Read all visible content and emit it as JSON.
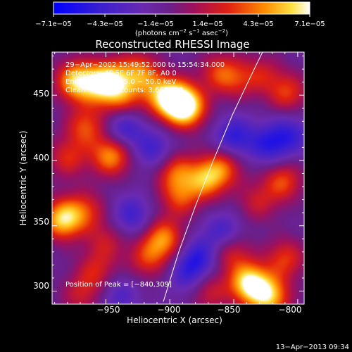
{
  "chart_data": {
    "type": "heatmap",
    "title": "Reconstructed RHESSI Image",
    "xlabel": "Heliocentric X (arcsec)",
    "ylabel": "Heliocentric Y (arcsec)",
    "xlim": [
      -992,
      -795
    ],
    "ylim": [
      290,
      483
    ],
    "x_ticks": [
      -950,
      -900,
      -850,
      -800
    ],
    "x_tick_labels": [
      "−950",
      "−900",
      "−850",
      "−800"
    ],
    "y_ticks": [
      300,
      350,
      400,
      450
    ],
    "y_tick_labels": [
      "300",
      "350",
      "400",
      "450"
    ],
    "colorbar": {
      "range": [
        -7.1e-05,
        7.1e-05
      ],
      "tick_labels": [
        "−7.1e−05",
        "−4.3e−05",
        "−1.4e−05",
        "1.4e−05",
        "4.3e−05",
        "7.1e−05"
      ],
      "units_main": "(photons cm",
      "units_exp1": "−2",
      "units_mid": " s",
      "units_exp2": "−1",
      "units_after": " asec",
      "units_exp3": "−2",
      "units_close": ")"
    },
    "annotations": {
      "time_range": "29−Apr−2002 15:49:52.000 to 15:54:34.000",
      "detectors": "Detectors: 4F 5F 6F 7F 8F, A0 0",
      "energy": "Energy Range: 25.0 − 50.0 keV",
      "method": "Clean",
      "counts": "Total counts: 3.66E+03",
      "peak": "Position of Peak = [−840,309]"
    },
    "limb_curve": [
      [
        -905,
        292
      ],
      [
        -893,
        330
      ],
      [
        -880,
        365
      ],
      [
        -866,
        400
      ],
      [
        -851,
        435
      ],
      [
        -834,
        470
      ],
      [
        -826,
        486
      ]
    ],
    "blobs": [
      {
        "x": -974,
        "y": 461,
        "v": 0.85
      },
      {
        "x": -956,
        "y": 458,
        "v": 0.55
      },
      {
        "x": -946,
        "y": 462,
        "v": 0.65
      },
      {
        "x": -938,
        "y": 448,
        "v": 0.45
      },
      {
        "x": -924,
        "y": 468,
        "v": 0.6
      },
      {
        "x": -910,
        "y": 452,
        "v": 0.45
      },
      {
        "x": -896,
        "y": 446,
        "v": 1.0
      },
      {
        "x": -886,
        "y": 440,
        "v": 0.75
      },
      {
        "x": -862,
        "y": 468,
        "v": 0.45
      },
      {
        "x": -848,
        "y": 462,
        "v": 0.35
      },
      {
        "x": -828,
        "y": 466,
        "v": 0.35
      },
      {
        "x": -808,
        "y": 452,
        "v": 0.5
      },
      {
        "x": -966,
        "y": 426,
        "v": 0.55
      },
      {
        "x": -946,
        "y": 404,
        "v": 0.75
      },
      {
        "x": -980,
        "y": 402,
        "v": 0.45
      },
      {
        "x": -936,
        "y": 424,
        "v": -0.45
      },
      {
        "x": -912,
        "y": 408,
        "v": -0.4
      },
      {
        "x": -896,
        "y": 392,
        "v": 0.55
      },
      {
        "x": -872,
        "y": 386,
        "v": 0.7
      },
      {
        "x": -858,
        "y": 395,
        "v": 0.5
      },
      {
        "x": -850,
        "y": 418,
        "v": -0.5
      },
      {
        "x": -823,
        "y": 412,
        "v": -0.45
      },
      {
        "x": -806,
        "y": 420,
        "v": -0.4
      },
      {
        "x": -812,
        "y": 384,
        "v": 0.55
      },
      {
        "x": -832,
        "y": 368,
        "v": 0.35
      },
      {
        "x": -984,
        "y": 355,
        "v": 0.9
      },
      {
        "x": -966,
        "y": 362,
        "v": 0.45
      },
      {
        "x": -950,
        "y": 338,
        "v": 0.35
      },
      {
        "x": -930,
        "y": 358,
        "v": -0.4
      },
      {
        "x": -958,
        "y": 315,
        "v": 0.4
      },
      {
        "x": -918,
        "y": 325,
        "v": 0.45
      },
      {
        "x": -905,
        "y": 340,
        "v": 0.7
      },
      {
        "x": -892,
        "y": 372,
        "v": 0.5
      },
      {
        "x": -878,
        "y": 326,
        "v": -0.45
      },
      {
        "x": -858,
        "y": 345,
        "v": -0.4
      },
      {
        "x": -852,
        "y": 330,
        "v": 0.45
      },
      {
        "x": -838,
        "y": 306,
        "v": 1.0
      },
      {
        "x": -822,
        "y": 296,
        "v": 0.8
      },
      {
        "x": -810,
        "y": 325,
        "v": 0.5
      },
      {
        "x": -870,
        "y": 300,
        "v": 0.4
      },
      {
        "x": -886,
        "y": 312,
        "v": -0.35
      },
      {
        "x": -970,
        "y": 297,
        "v": 0.35
      },
      {
        "x": -940,
        "y": 297,
        "v": -0.3
      }
    ]
  },
  "footer": {
    "date": "13−Apr−2013 09:34"
  }
}
